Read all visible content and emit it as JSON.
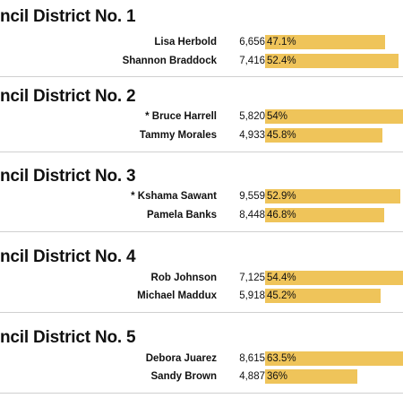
{
  "races": [
    {
      "title": "ncil District No. 1",
      "candidates": [
        {
          "name": "Lisa Herbold",
          "votes": "6,656",
          "percent": "47.1%",
          "share": 47.1
        },
        {
          "name": "Shannon Braddock",
          "votes": "7,416",
          "percent": "52.4%",
          "share": 52.4
        }
      ]
    },
    {
      "title": "ncil District No. 2",
      "candidates": [
        {
          "name": "* Bruce Harrell",
          "votes": "5,820",
          "percent": "54%",
          "share": 54
        },
        {
          "name": "Tammy Morales",
          "votes": "4,933",
          "percent": "45.8%",
          "share": 45.8
        }
      ]
    },
    {
      "title": "ncil District No. 3",
      "candidates": [
        {
          "name": "* Kshama Sawant",
          "votes": "9,559",
          "percent": "52.9%",
          "share": 52.9
        },
        {
          "name": "Pamela Banks",
          "votes": "8,448",
          "percent": "46.8%",
          "share": 46.8
        }
      ]
    },
    {
      "title": "ncil District No. 4",
      "candidates": [
        {
          "name": "Rob Johnson",
          "votes": "7,125",
          "percent": "54.4%",
          "share": 54.4
        },
        {
          "name": "Michael Maddux",
          "votes": "5,918",
          "percent": "45.2%",
          "share": 45.2
        }
      ]
    },
    {
      "title": "ncil District No. 5",
      "candidates": [
        {
          "name": "Debora Juarez",
          "votes": "8,615",
          "percent": "63.5%",
          "share": 63.5
        },
        {
          "name": "Sandy Brown",
          "votes": "4,887",
          "percent": "36%",
          "share": 36
        }
      ]
    }
  ],
  "colors": {
    "bar": "#efc45a",
    "text": "#111111",
    "separator": "#d0d0d0"
  }
}
